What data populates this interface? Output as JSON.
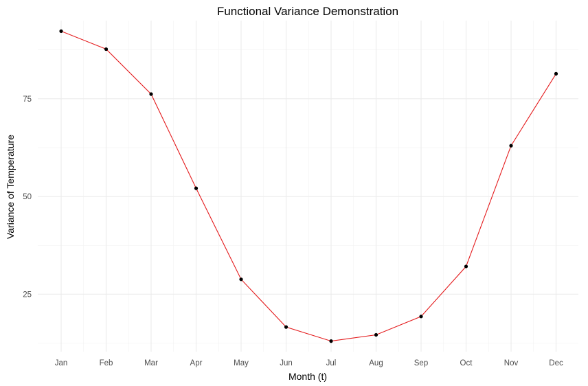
{
  "chart_data": {
    "type": "line",
    "title": "Functional Variance Demonstration",
    "xlabel": "Month (t)",
    "ylabel": "Variance of Temperature",
    "categories": [
      "Jan",
      "Feb",
      "Mar",
      "Apr",
      "May",
      "Jun",
      "Jul",
      "Aug",
      "Sep",
      "Oct",
      "Nov",
      "Dec"
    ],
    "series": [
      {
        "values": [
          92.3,
          87.7,
          76.2,
          52.1,
          28.8,
          16.6,
          13.0,
          14.6,
          19.3,
          32.1,
          63.0,
          81.4
        ]
      }
    ],
    "ylim": [
      10.3,
      95.0
    ],
    "yticks": [
      25,
      50,
      75
    ],
    "grid": true,
    "legend": "none",
    "colors": {
      "line": "#e41a1c",
      "points": "#000000",
      "grid": "#ebebeb"
    }
  }
}
